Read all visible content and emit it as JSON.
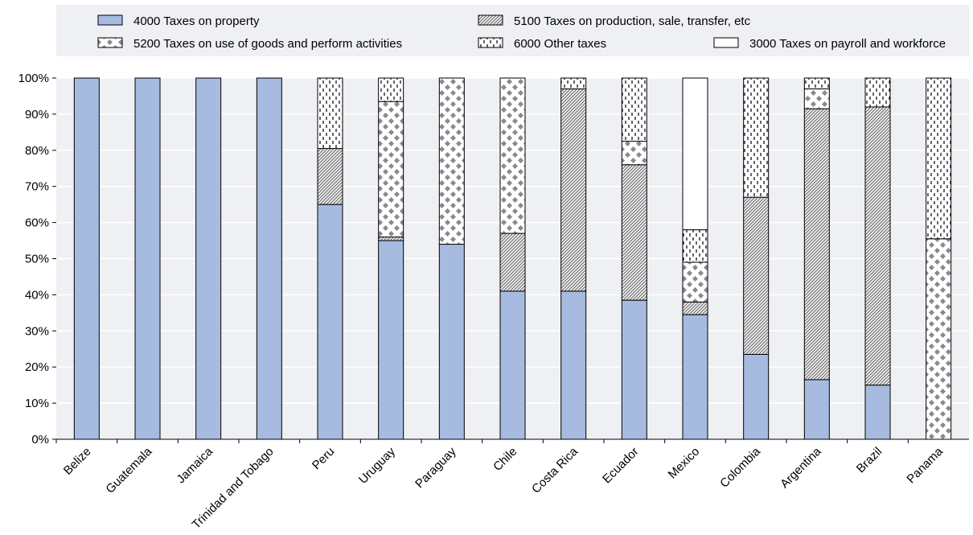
{
  "chart_data": {
    "type": "bar",
    "stacked": true,
    "title": "",
    "xlabel": "",
    "ylabel": "",
    "ylim": [
      0,
      100
    ],
    "y_tick_labels": [
      "0%",
      "10%",
      "20%",
      "30%",
      "40%",
      "50%",
      "60%",
      "70%",
      "80%",
      "90%",
      "100%"
    ],
    "grid": "horizontal",
    "legend_position": "top",
    "categories": [
      "Belize",
      "Guatemala",
      "Jamaica",
      "Trinidad and Tobago",
      "Peru",
      "Uruguay",
      "Paraguay",
      "Chile",
      "Costa Rica",
      "Ecuador",
      "Mexico",
      "Colombia",
      "Argentina",
      "Brazil",
      "Panama"
    ],
    "series": [
      {
        "name": "4000 Taxes on property",
        "key": "property",
        "pattern": "solid",
        "color": "#a7bbe0",
        "values": [
          100,
          100,
          100,
          100,
          65,
          55,
          54,
          41,
          41,
          38.5,
          34.5,
          23.5,
          16.5,
          15,
          0
        ]
      },
      {
        "name": "5100 Taxes on production, sale, transfer, etc",
        "key": "production",
        "pattern": "diagonal",
        "color": "#8c8c8c",
        "values": [
          0,
          0,
          0,
          0,
          15.5,
          1,
          0,
          16,
          56,
          37.5,
          3.5,
          43.5,
          75,
          77,
          0
        ]
      },
      {
        "name": "5200 Taxes on use of goods and perform activities",
        "key": "use_goods",
        "pattern": "dots",
        "color": "#8c8c8c",
        "values": [
          0,
          0,
          0,
          0,
          0,
          37.5,
          46,
          43,
          0,
          6.5,
          11,
          0,
          5.5,
          0,
          55.5
        ]
      },
      {
        "name": "6000 Other taxes",
        "key": "other",
        "pattern": "dashes",
        "color": "#000000",
        "values": [
          0,
          0,
          0,
          0,
          19.5,
          6.5,
          0,
          0,
          3,
          17.5,
          9,
          33,
          3,
          8,
          44.5
        ]
      },
      {
        "name": "3000 Taxes on payroll and workforce",
        "key": "payroll",
        "pattern": "blank",
        "color": "#ffffff",
        "values": [
          0,
          0,
          0,
          0,
          0,
          0,
          0,
          0,
          0,
          0,
          42,
          0,
          0,
          0,
          0
        ]
      }
    ],
    "colors": {
      "background_band": "#eef0f4",
      "axis": "#000000",
      "grid": "#ffffff"
    }
  }
}
